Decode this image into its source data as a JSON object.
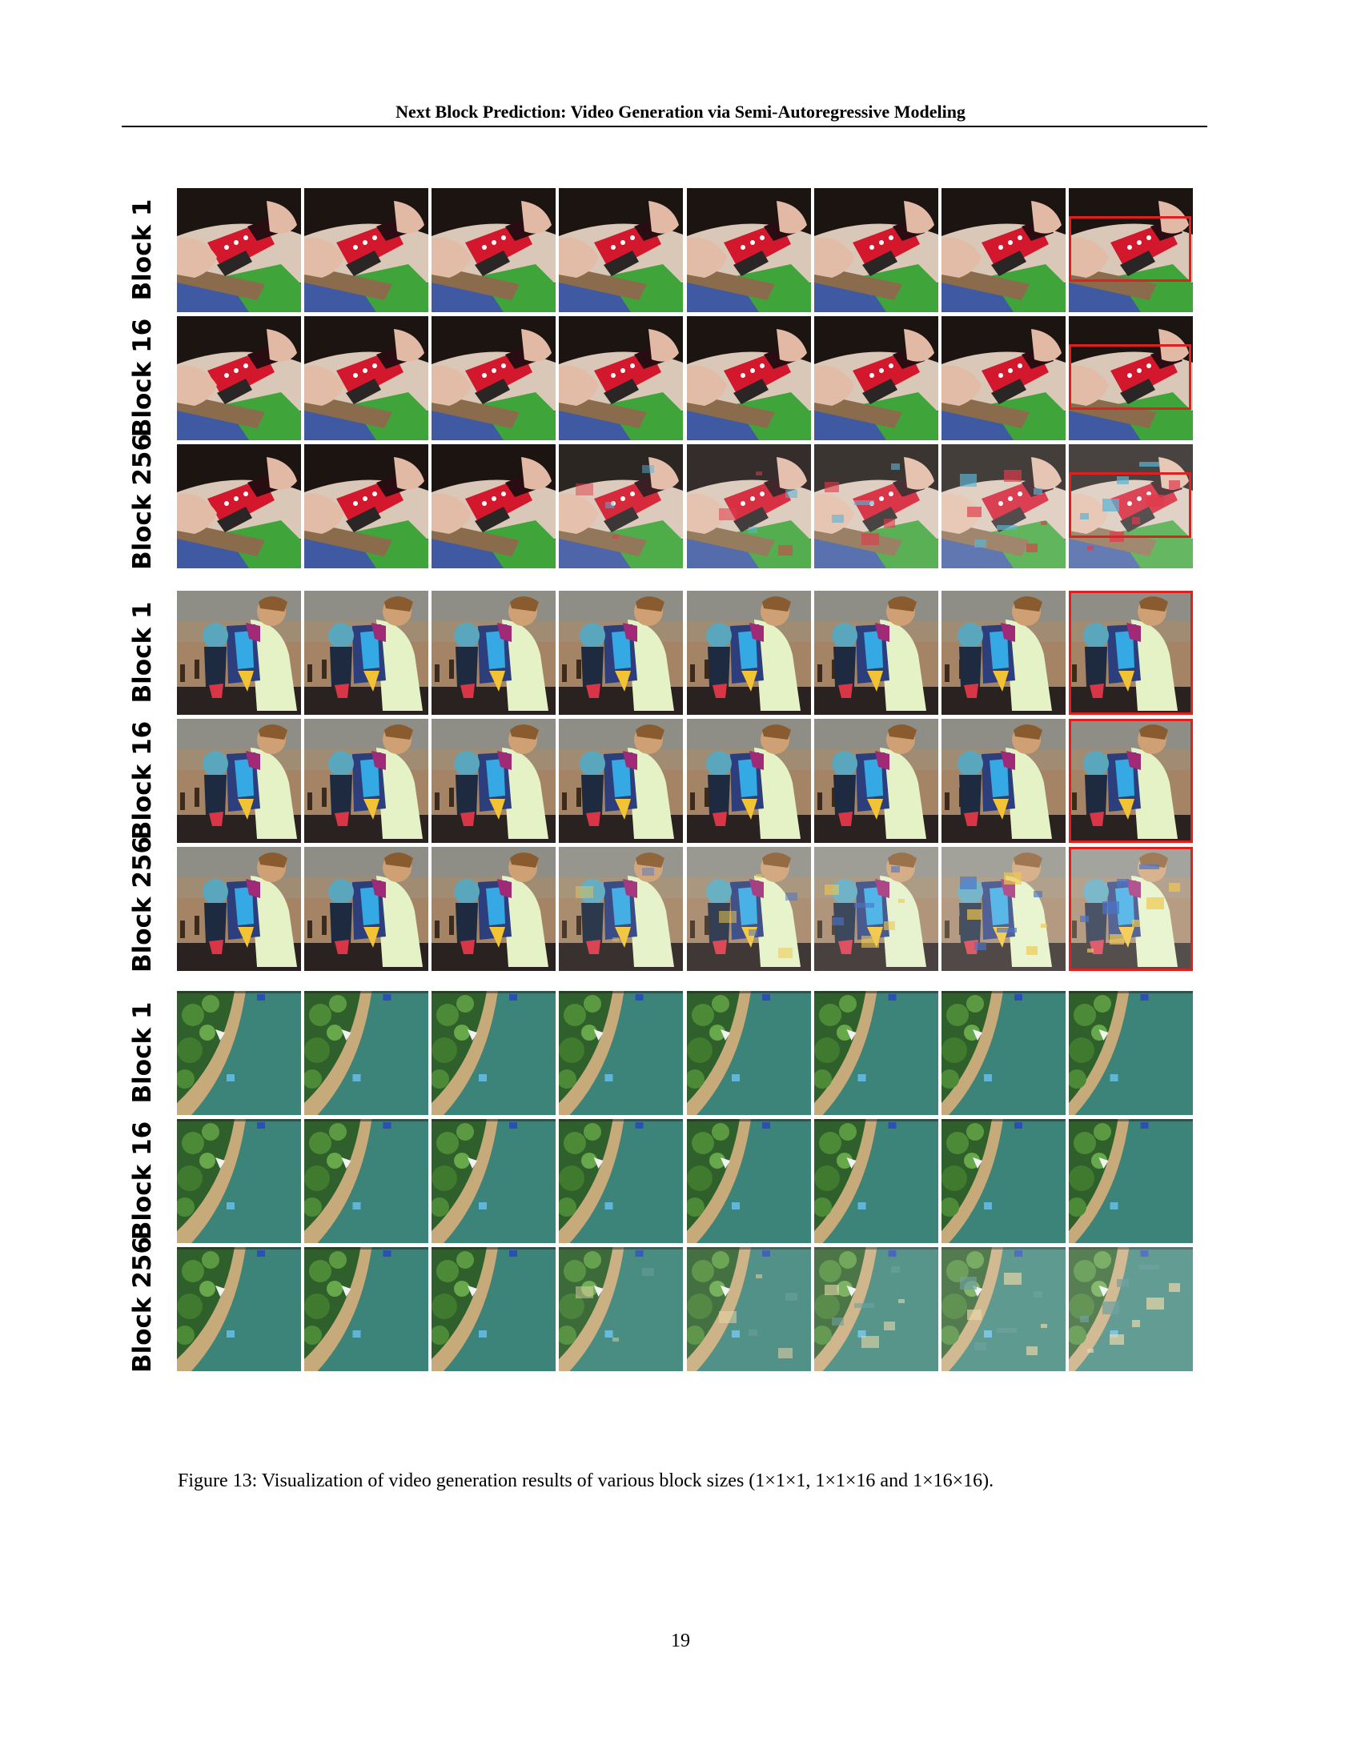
{
  "header": {
    "title": "Next Block Prediction: Video Generation via Semi-Autoregressive Modeling"
  },
  "figure": {
    "caption": "Figure 13: Visualization of video generation results of various block sizes (1×1×1, 1×1×16 and 1×16×16).",
    "groups": [
      {
        "scene": "red toy car held in hands",
        "rows": [
          {
            "label": "Block 1",
            "frames": 8,
            "highlight": "center",
            "degradation": [
              0,
              0,
              0,
              0,
              0,
              0,
              0,
              0
            ]
          },
          {
            "label": "Block 16",
            "frames": 8,
            "highlight": "center",
            "degradation": [
              0,
              0,
              0,
              0,
              0,
              0,
              0,
              0
            ]
          },
          {
            "label": "Block 256",
            "frames": 8,
            "highlight": "center",
            "degradation": [
              0,
              0,
              0,
              0.35,
              0.5,
              0.65,
              0.8,
              0.9
            ]
          }
        ]
      },
      {
        "scene": "child with backpack beside adult on a beach",
        "rows": [
          {
            "label": "Block 1",
            "frames": 8,
            "highlight": "full",
            "degradation": [
              0,
              0,
              0,
              0,
              0,
              0,
              0,
              0
            ]
          },
          {
            "label": "Block 16",
            "frames": 8,
            "highlight": "full",
            "degradation": [
              0,
              0,
              0,
              0,
              0,
              0,
              0,
              0
            ]
          },
          {
            "label": "Block 256",
            "frames": 8,
            "highlight": "full",
            "degradation": [
              0,
              0,
              0,
              0.3,
              0.45,
              0.65,
              0.8,
              0.9
            ]
          }
        ]
      },
      {
        "scene": "aerial view of a forested shoreline",
        "rows": [
          {
            "label": "Block 1",
            "frames": 8,
            "highlight": "none",
            "degradation": [
              0,
              0,
              0,
              0,
              0,
              0,
              0,
              0
            ]
          },
          {
            "label": "Block 16",
            "frames": 8,
            "highlight": "none",
            "degradation": [
              0,
              0,
              0,
              0,
              0,
              0,
              0,
              0
            ]
          },
          {
            "label": "Block 256",
            "frames": 8,
            "highlight": "none",
            "degradation": [
              0,
              0,
              0,
              0.3,
              0.5,
              0.65,
              0.8,
              0.9
            ]
          }
        ]
      }
    ]
  },
  "page_number": "19"
}
